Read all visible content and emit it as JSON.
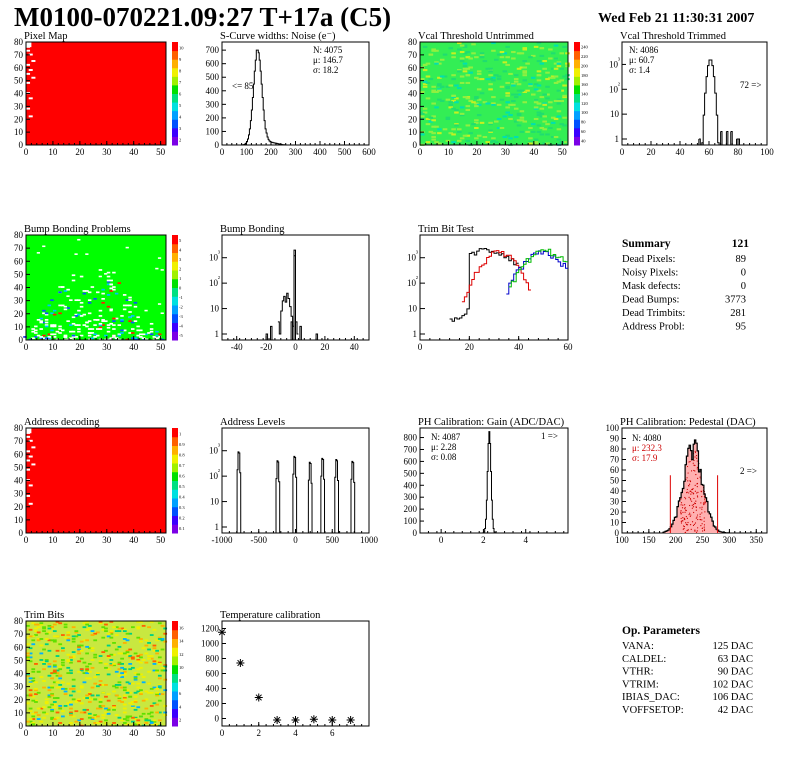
{
  "header": {
    "title": "M0100-070221.09:27 T+17a (C5)",
    "date": "Wed Feb 21 11:30:31 2007"
  },
  "chart_data": [
    {
      "id": "pixel-map",
      "type": "heatmap",
      "title": "Pixel Map",
      "xlim": [
        0,
        52
      ],
      "ylim": [
        0,
        80
      ],
      "xticks": [
        0,
        10,
        20,
        30,
        40,
        50
      ],
      "yticks": [
        0,
        10,
        20,
        30,
        40,
        50,
        60,
        70,
        80
      ],
      "colorbar_ticks": [
        "2",
        "3",
        "4",
        "5",
        "6",
        "7",
        "8",
        "9",
        "10"
      ],
      "fill": "mostly red (full response), a few dead pixels on the left edge"
    },
    {
      "id": "scurve",
      "type": "bar",
      "title": "S-Curve widths: Noise (e⁻)",
      "xlim": [
        0,
        600
      ],
      "ylim": [
        0,
        760
      ],
      "xticks": [
        0,
        100,
        200,
        300,
        400,
        500,
        600
      ],
      "yticks": [
        0,
        100,
        200,
        300,
        400,
        500,
        600,
        700
      ],
      "stats": [
        "N: 4075",
        "μ: 146.7",
        "σ: 18.2"
      ],
      "annotation": "<= 85",
      "peak": {
        "x": 146,
        "y": 700
      }
    },
    {
      "id": "vcal-untrimmed",
      "type": "heatmap",
      "title": "Vcal Threshold Untrimmed",
      "xlim": [
        0,
        52
      ],
      "ylim": [
        0,
        80
      ],
      "xticks": [
        0,
        10,
        20,
        30,
        40,
        50
      ],
      "yticks": [
        0,
        10,
        20,
        30,
        40,
        50,
        60,
        70,
        80
      ],
      "colorbar_ticks": [
        "40",
        "60",
        "80",
        "100",
        "120",
        "140",
        "160",
        "180",
        "200",
        "220",
        "240"
      ],
      "fill": "mostly green"
    },
    {
      "id": "vcal-trimmed",
      "type": "bar",
      "title": "Vcal Threshold Trimmed",
      "log_y": true,
      "xlim": [
        0,
        100
      ],
      "xticks": [
        0,
        20,
        40,
        60,
        80,
        100
      ],
      "ytick_labels": [
        "1",
        "10",
        "10²",
        "10³"
      ],
      "stats": [
        "N: 4086",
        "μ: 60.7",
        "σ: 1.4"
      ],
      "annotation": "72 =>",
      "peak": {
        "x": 61,
        "y": 1600
      }
    },
    {
      "id": "bump-map",
      "type": "heatmap",
      "title": "Bump Bonding Problems",
      "xlim": [
        0,
        52
      ],
      "ylim": [
        0,
        80
      ],
      "xticks": [
        0,
        10,
        20,
        30,
        40,
        50
      ],
      "yticks": [
        0,
        10,
        20,
        30,
        40,
        50,
        60,
        70,
        80
      ],
      "colorbar_ticks": [
        "-5",
        "-4",
        "-3",
        "-2",
        "-1",
        "0",
        "1",
        "2",
        "3",
        "4",
        "5"
      ],
      "fill": "green with white holes in lower middle"
    },
    {
      "id": "bump-hist",
      "type": "bar",
      "title": "Bump Bonding",
      "log_y": true,
      "xlim": [
        -50,
        50
      ],
      "xticks": [
        -40,
        -20,
        0,
        20,
        40
      ],
      "ytick_labels": [
        "1",
        "10",
        "10²",
        "10³"
      ]
    },
    {
      "id": "trim-bit-test",
      "type": "line",
      "title": "Trim Bit Test",
      "log_y": true,
      "xlim": [
        0,
        60
      ],
      "xticks": [
        0,
        20,
        40,
        60
      ],
      "ytick_labels": [
        "1",
        "10",
        "10²",
        "10³"
      ],
      "series": [
        {
          "color": "#000000",
          "peak_x": 27
        },
        {
          "color": "#dd0000",
          "peak_x": 32
        },
        {
          "color": "#0000cc",
          "peak_x": 50
        },
        {
          "color": "#00bb00",
          "peak_x": 51
        }
      ]
    },
    {
      "id": "address-map",
      "type": "heatmap",
      "title": "Address decoding",
      "xlim": [
        0,
        52
      ],
      "ylim": [
        0,
        80
      ],
      "xticks": [
        0,
        10,
        20,
        30,
        40,
        50
      ],
      "yticks": [
        0,
        10,
        20,
        30,
        40,
        50,
        60,
        70,
        80
      ],
      "colorbar_ticks": [
        "0.1",
        "0.2",
        "0.3",
        "0.4",
        "0.5",
        "0.6",
        "0.7",
        "0.8",
        "0.9",
        "1"
      ],
      "fill": "mostly red"
    },
    {
      "id": "address-levels",
      "type": "bar",
      "title": "Address Levels",
      "log_y": true,
      "xlim": [
        -1000,
        1000
      ],
      "xticks": [
        -1000,
        -500,
        0,
        500,
        1000
      ],
      "ytick_labels": [
        "1",
        "10",
        "10²",
        "10³"
      ],
      "peaks_x": [
        -770,
        -240,
        -10,
        200,
        370,
        560,
        780
      ]
    },
    {
      "id": "ph-gain",
      "type": "bar",
      "title": "PH Calibration: Gain (ADC/DAC)",
      "xlim": [
        -1,
        6
      ],
      "ylim": [
        0,
        880
      ],
      "xticks": [
        0,
        2,
        4
      ],
      "yticks": [
        0,
        100,
        200,
        300,
        400,
        500,
        600,
        700,
        800
      ],
      "stats": [
        "N: 4087",
        "μ: 2.28",
        "σ: 0.08"
      ],
      "annotation": "1 =>",
      "peak": {
        "x": 2.28,
        "y": 850
      }
    },
    {
      "id": "ph-pedestal",
      "type": "bar",
      "title": "PH Calibration: Pedestal (DAC)",
      "xlim": [
        100,
        370
      ],
      "ylim": [
        0,
        100
      ],
      "xticks": [
        100,
        150,
        200,
        250,
        300,
        350
      ],
      "yticks": [
        0,
        10,
        20,
        30,
        40,
        50,
        60,
        70,
        80,
        90,
        100
      ],
      "stats": [
        "N: 4080",
        "μ: 232.3",
        "σ: 17.9"
      ],
      "annotation": "2 =>",
      "cut_lines_x": [
        190,
        278
      ],
      "mean": 232.3,
      "sigma": 17.9
    },
    {
      "id": "trim-bits",
      "type": "heatmap",
      "title": "Trim Bits",
      "xlim": [
        0,
        52
      ],
      "ylim": [
        0,
        80
      ],
      "xticks": [
        0,
        10,
        20,
        30,
        40,
        50
      ],
      "yticks": [
        0,
        10,
        20,
        30,
        40,
        50,
        60,
        70,
        80
      ],
      "colorbar_ticks": [
        "2",
        "4",
        "6",
        "8",
        "10",
        "12",
        "14",
        "16"
      ],
      "fill": "mixed yellow/green"
    },
    {
      "id": "temperature",
      "type": "scatter",
      "title": "Temperature calibration",
      "xlim": [
        0,
        8
      ],
      "ylim": [
        -100,
        1300
      ],
      "xticks": [
        0,
        2,
        4,
        6
      ],
      "yticks": [
        0,
        200,
        400,
        600,
        800,
        1000,
        1200
      ],
      "x": [
        0,
        1,
        2,
        3,
        4,
        5,
        6,
        7
      ],
      "y": [
        1150,
        740,
        280,
        -20,
        -20,
        -10,
        -20,
        -20
      ]
    }
  ],
  "summary": {
    "title": "Summary",
    "total": "121",
    "rows": [
      {
        "label": "Dead Pixels:",
        "value": "89"
      },
      {
        "label": "Noisy Pixels:",
        "value": "0"
      },
      {
        "label": "Mask defects:",
        "value": "0"
      },
      {
        "label": "Dead Bumps:",
        "value": "3773"
      },
      {
        "label": "Dead Trimbits:",
        "value": "281"
      },
      {
        "label": "Address Probl:",
        "value": "95"
      }
    ]
  },
  "op_params": {
    "title": "Op. Parameters",
    "rows": [
      {
        "label": "VANA:",
        "value": "125 DAC"
      },
      {
        "label": "CALDEL:",
        "value": "63 DAC"
      },
      {
        "label": "VTHR:",
        "value": "90 DAC"
      },
      {
        "label": "VTRIM:",
        "value": "102 DAC"
      },
      {
        "label": "IBIAS_DAC:",
        "value": "106 DAC"
      },
      {
        "label": "VOFFSETOP:",
        "value": "42 DAC"
      }
    ]
  }
}
